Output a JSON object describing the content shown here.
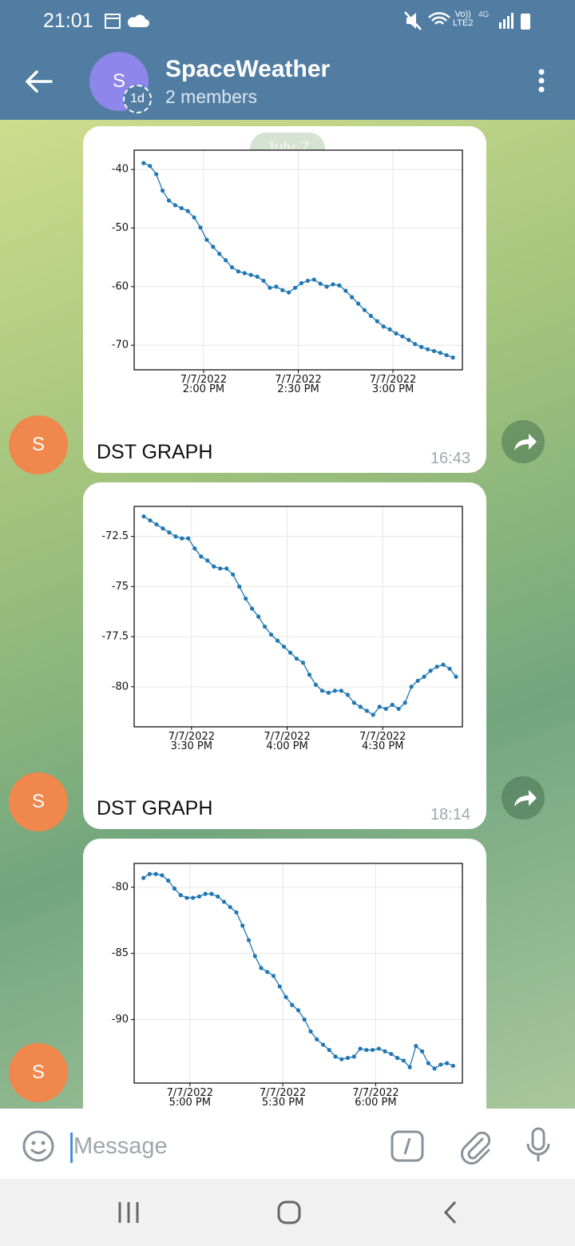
{
  "status_bar": {
    "time": "21:01",
    "volte": "Vo))",
    "lte": "LTE2",
    "network": "4G"
  },
  "header": {
    "title": "SpaceWeather",
    "subtitle": "2 members",
    "avatar_letter": "S",
    "badge": "1d"
  },
  "date_badge": "July 7",
  "messages": [
    {
      "avatar": "S",
      "caption": "DST GRAPH",
      "time": "16:43"
    },
    {
      "avatar": "S",
      "caption": "DST GRAPH",
      "time": "18:14"
    },
    {
      "avatar": "S"
    }
  ],
  "composer": {
    "placeholder": "Message"
  },
  "chart_data": [
    {
      "type": "line",
      "color": "#1f77b4",
      "grid": true,
      "xlim": [
        "2022-07-07T13:38",
        "2022-07-07T15:22"
      ],
      "ylim": [
        -36.7,
        -74.2
      ],
      "xticks": [
        {
          "value": "2022-07-07T14:00",
          "label": "7/7/2022 2:00 PM"
        },
        {
          "value": "2022-07-07T14:30",
          "label": "7/7/2022 2:30 PM"
        },
        {
          "value": "2022-07-07T15:00",
          "label": "7/7/2022 3:00 PM"
        }
      ],
      "yticks": [
        -40,
        -50,
        -60,
        -70
      ],
      "x": [
        "2022-07-07T13:41",
        "2022-07-07T13:43",
        "2022-07-07T13:45",
        "2022-07-07T13:47",
        "2022-07-07T13:49",
        "2022-07-07T13:51",
        "2022-07-07T13:53",
        "2022-07-07T13:55",
        "2022-07-07T13:57",
        "2022-07-07T13:59",
        "2022-07-07T14:01",
        "2022-07-07T14:03",
        "2022-07-07T14:05",
        "2022-07-07T14:07",
        "2022-07-07T14:09",
        "2022-07-07T14:11",
        "2022-07-07T14:13",
        "2022-07-07T14:15",
        "2022-07-07T14:17",
        "2022-07-07T14:19",
        "2022-07-07T14:21",
        "2022-07-07T14:23",
        "2022-07-07T14:25",
        "2022-07-07T14:27",
        "2022-07-07T14:29",
        "2022-07-07T14:31",
        "2022-07-07T14:33",
        "2022-07-07T14:35",
        "2022-07-07T14:37",
        "2022-07-07T14:39",
        "2022-07-07T14:41",
        "2022-07-07T14:43",
        "2022-07-07T14:45",
        "2022-07-07T14:47",
        "2022-07-07T14:49",
        "2022-07-07T14:51",
        "2022-07-07T14:53",
        "2022-07-07T14:55",
        "2022-07-07T14:57",
        "2022-07-07T14:59",
        "2022-07-07T15:01",
        "2022-07-07T15:03",
        "2022-07-07T15:05",
        "2022-07-07T15:07",
        "2022-07-07T15:09",
        "2022-07-07T15:11",
        "2022-07-07T15:13",
        "2022-07-07T15:15",
        "2022-07-07T15:17",
        "2022-07-07T15:19"
      ],
      "values": [
        -38.9,
        -39.4,
        -40.8,
        -43.6,
        -45.3,
        -46.1,
        -46.6,
        -47.1,
        -48.2,
        -49.9,
        -52.0,
        -53.2,
        -54.4,
        -55.5,
        -56.7,
        -57.4,
        -57.7,
        -58.0,
        -58.3,
        -59.0,
        -60.2,
        -60.0,
        -60.6,
        -61.0,
        -60.2,
        -59.4,
        -59.0,
        -58.8,
        -59.5,
        -60.0,
        -59.6,
        -59.8,
        -60.7,
        -61.8,
        -62.9,
        -64.0,
        -65.0,
        -65.9,
        -66.8,
        -67.3,
        -68.0,
        -68.5,
        -69.1,
        -69.8,
        -70.3,
        -70.7,
        -71.0,
        -71.3,
        -71.7,
        -72.1
      ]
    },
    {
      "type": "line",
      "color": "#1f77b4",
      "grid": true,
      "xlim": [
        "2022-07-07T15:12",
        "2022-07-07T16:55"
      ],
      "ylim": [
        -71.0,
        -82.0
      ],
      "xticks": [
        {
          "value": "2022-07-07T15:30",
          "label": "7/7/2022 3:30 PM"
        },
        {
          "value": "2022-07-07T16:00",
          "label": "7/7/2022 4:00 PM"
        },
        {
          "value": "2022-07-07T16:30",
          "label": "7/7/2022 4:30 PM"
        }
      ],
      "yticks": [
        -72.5,
        -75,
        -77.5,
        -80
      ],
      "x": [
        "2022-07-07T15:15",
        "2022-07-07T15:17",
        "2022-07-07T15:19",
        "2022-07-07T15:21",
        "2022-07-07T15:23",
        "2022-07-07T15:25",
        "2022-07-07T15:27",
        "2022-07-07T15:29",
        "2022-07-07T15:31",
        "2022-07-07T15:33",
        "2022-07-07T15:35",
        "2022-07-07T15:37",
        "2022-07-07T15:39",
        "2022-07-07T15:41",
        "2022-07-07T15:43",
        "2022-07-07T15:45",
        "2022-07-07T15:47",
        "2022-07-07T15:49",
        "2022-07-07T15:51",
        "2022-07-07T15:53",
        "2022-07-07T15:55",
        "2022-07-07T15:57",
        "2022-07-07T15:59",
        "2022-07-07T16:01",
        "2022-07-07T16:03",
        "2022-07-07T16:05",
        "2022-07-07T16:07",
        "2022-07-07T16:09",
        "2022-07-07T16:11",
        "2022-07-07T16:13",
        "2022-07-07T16:15",
        "2022-07-07T16:17",
        "2022-07-07T16:19",
        "2022-07-07T16:21",
        "2022-07-07T16:23",
        "2022-07-07T16:25",
        "2022-07-07T16:27",
        "2022-07-07T16:29",
        "2022-07-07T16:31",
        "2022-07-07T16:33",
        "2022-07-07T16:35",
        "2022-07-07T16:37",
        "2022-07-07T16:39",
        "2022-07-07T16:41",
        "2022-07-07T16:43",
        "2022-07-07T16:45",
        "2022-07-07T16:47",
        "2022-07-07T16:49",
        "2022-07-07T16:51",
        "2022-07-07T16:53"
      ],
      "values": [
        -71.5,
        -71.7,
        -71.9,
        -72.1,
        -72.3,
        -72.5,
        -72.6,
        -72.6,
        -73.1,
        -73.5,
        -73.7,
        -74.0,
        -74.1,
        -74.1,
        -74.4,
        -75.0,
        -75.6,
        -76.1,
        -76.5,
        -77.0,
        -77.4,
        -77.7,
        -78.0,
        -78.3,
        -78.6,
        -78.8,
        -79.4,
        -79.9,
        -80.2,
        -80.3,
        -80.2,
        -80.2,
        -80.4,
        -80.8,
        -81.0,
        -81.2,
        -81.4,
        -81.0,
        -81.1,
        -80.9,
        -81.1,
        -80.8,
        -80.0,
        -79.7,
        -79.5,
        -79.2,
        -79.0,
        -78.9,
        -79.1,
        -79.5
      ]
    },
    {
      "type": "line",
      "color": "#1f77b4",
      "grid": true,
      "xlim": [
        "2022-07-07T16:42",
        "2022-07-07T18:28"
      ],
      "ylim": [
        -78.2,
        -94.8
      ],
      "xticks": [
        {
          "value": "2022-07-07T17:00",
          "label": "7/7/2022 5:00 PM"
        },
        {
          "value": "2022-07-07T17:30",
          "label": "7/7/2022 5:30 PM"
        },
        {
          "value": "2022-07-07T18:00",
          "label": "7/7/2022 6:00 PM"
        }
      ],
      "yticks": [
        -80,
        -85,
        -90
      ],
      "x": [
        "2022-07-07T16:45",
        "2022-07-07T16:47",
        "2022-07-07T16:49",
        "2022-07-07T16:51",
        "2022-07-07T16:53",
        "2022-07-07T16:55",
        "2022-07-07T16:57",
        "2022-07-07T16:59",
        "2022-07-07T17:01",
        "2022-07-07T17:03",
        "2022-07-07T17:05",
        "2022-07-07T17:07",
        "2022-07-07T17:09",
        "2022-07-07T17:11",
        "2022-07-07T17:13",
        "2022-07-07T17:15",
        "2022-07-07T17:17",
        "2022-07-07T17:19",
        "2022-07-07T17:21",
        "2022-07-07T17:23",
        "2022-07-07T17:25",
        "2022-07-07T17:27",
        "2022-07-07T17:29",
        "2022-07-07T17:31",
        "2022-07-07T17:33",
        "2022-07-07T17:35",
        "2022-07-07T17:37",
        "2022-07-07T17:39",
        "2022-07-07T17:41",
        "2022-07-07T17:43",
        "2022-07-07T17:45",
        "2022-07-07T17:47",
        "2022-07-07T17:49",
        "2022-07-07T17:51",
        "2022-07-07T17:53",
        "2022-07-07T17:55",
        "2022-07-07T17:57",
        "2022-07-07T17:59",
        "2022-07-07T18:01",
        "2022-07-07T18:03",
        "2022-07-07T18:05",
        "2022-07-07T18:07",
        "2022-07-07T18:09",
        "2022-07-07T18:11",
        "2022-07-07T18:13",
        "2022-07-07T18:15",
        "2022-07-07T18:17",
        "2022-07-07T18:19",
        "2022-07-07T18:21",
        "2022-07-07T18:23",
        "2022-07-07T18:25"
      ],
      "values": [
        -79.3,
        -79.0,
        -79.0,
        -79.1,
        -79.5,
        -80.1,
        -80.6,
        -80.8,
        -80.8,
        -80.7,
        -80.5,
        -80.5,
        -80.7,
        -81.1,
        -81.5,
        -81.9,
        -82.9,
        -84.0,
        -85.2,
        -86.1,
        -86.4,
        -86.7,
        -87.5,
        -88.3,
        -88.9,
        -89.3,
        -90.0,
        -90.9,
        -91.5,
        -91.9,
        -92.3,
        -92.8,
        -93.0,
        -92.9,
        -92.8,
        -92.2,
        -92.3,
        -92.3,
        -92.2,
        -92.4,
        -92.6,
        -92.9,
        -93.1,
        -93.6,
        -92.0,
        -92.4,
        -93.3,
        -93.7,
        -93.4,
        -93.3,
        -93.5
      ]
    }
  ]
}
